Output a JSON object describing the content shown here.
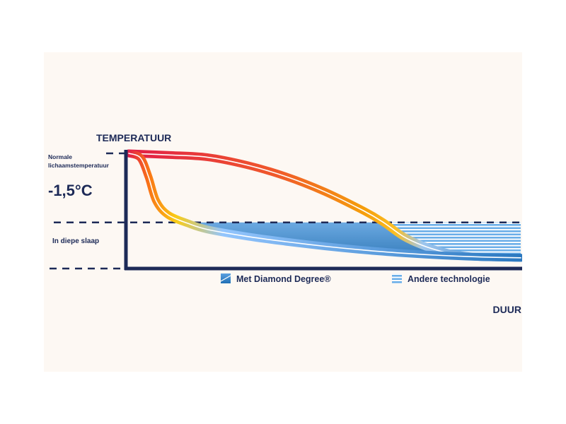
{
  "chart_data": {
    "type": "area",
    "ylabel": "TEMPERATUUR",
    "xlabel": "DUUR",
    "y_annotations": {
      "normal": "Normale lichaamstemperatuur",
      "delta": "-1,5°C",
      "deep_sleep": "In diepe slaap"
    },
    "ylim": [
      -1.5,
      0
    ],
    "xlim": [
      0,
      100
    ],
    "reference_lines": [
      {
        "name": "normal",
        "y": 0
      },
      {
        "name": "deep-sleep",
        "y": -0.9
      },
      {
        "name": "floor",
        "y": -1.5
      }
    ],
    "series": [
      {
        "name": "Met Diamond Degree®",
        "x": [
          0,
          3,
          5,
          7,
          10,
          15,
          20,
          30,
          40,
          50,
          60,
          70,
          80,
          90,
          100
        ],
        "y": [
          0,
          -0.06,
          -0.3,
          -0.62,
          -0.8,
          -0.91,
          -0.99,
          -1.08,
          -1.15,
          -1.21,
          -1.26,
          -1.3,
          -1.33,
          -1.35,
          -1.36
        ]
      },
      {
        "name": "Andere technologie",
        "x": [
          0,
          10,
          20,
          30,
          40,
          50,
          60,
          65,
          70,
          75,
          80,
          85,
          90,
          100
        ],
        "y": [
          0,
          -0.02,
          -0.05,
          -0.15,
          -0.3,
          -0.5,
          -0.75,
          -0.9,
          -1.08,
          -1.2,
          -1.28,
          -1.33,
          -1.35,
          -1.36
        ]
      }
    ],
    "legend": {
      "position": "bottom-center"
    },
    "grid": false
  },
  "colors": {
    "axis": "#1d2a57",
    "warm_start": "#e11d48",
    "warm_mid": "#f97316",
    "warm_end": "#facc15",
    "cool_light": "#93c5fd",
    "cool_dark": "#1f6fb5"
  }
}
